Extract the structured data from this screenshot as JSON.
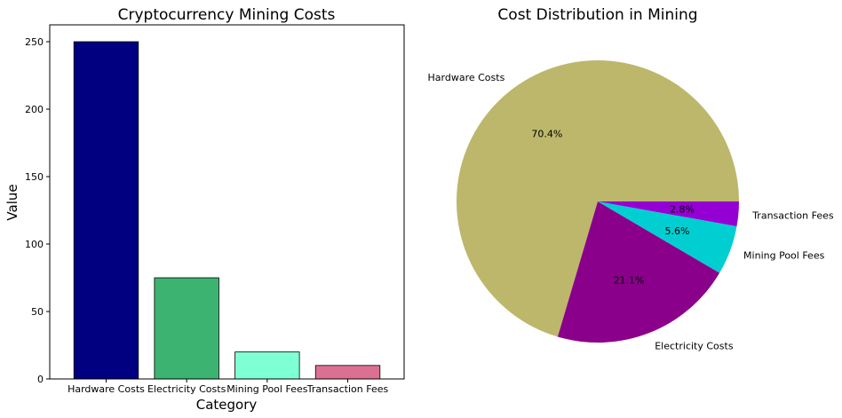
{
  "chart_data": [
    {
      "type": "bar",
      "title": "Cryptocurrency Mining Costs",
      "xlabel": "Category",
      "ylabel": "Value",
      "categories": [
        "Hardware Costs",
        "Electricity Costs",
        "Mining Pool Fees",
        "Transaction Fees"
      ],
      "values": [
        250,
        75,
        20,
        10
      ],
      "colors": [
        "#000080",
        "#3cb371",
        "#7fffd4",
        "#db7093"
      ],
      "ylim": [
        0,
        262.5
      ],
      "yticks": [
        0,
        50,
        100,
        150,
        200,
        250
      ],
      "grid": false,
      "legend": "none"
    },
    {
      "type": "pie",
      "title": "Cost Distribution in Mining",
      "labels": [
        "Hardware Costs",
        "Electricity Costs",
        "Mining Pool Fees",
        "Transaction Fees"
      ],
      "values": [
        250,
        75,
        20,
        10
      ],
      "percent_labels": [
        "70.4%",
        "21.1%",
        "5.6%",
        "2.8%"
      ],
      "colors": [
        "#bdb76b",
        "#8b008b",
        "#00ced1",
        "#9400d3"
      ],
      "legend": "none"
    }
  ]
}
